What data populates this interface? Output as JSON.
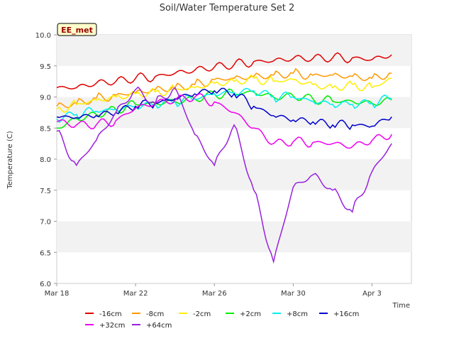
{
  "chart_data": {
    "type": "line",
    "title": "Soil/Water Temperature Set 2",
    "station_label": "EE_met",
    "xlabel": "Time",
    "ylabel": "Temperature (C)",
    "ylim": [
      6.0,
      10.0
    ],
    "yticks": [
      "6.0",
      "6.5",
      "7.0",
      "7.5",
      "8.0",
      "8.5",
      "9.0",
      "9.5",
      "10.0"
    ],
    "xlim": [
      "2024-03-18",
      "2024-04-05"
    ],
    "xticks": [
      {
        "date": "2024-03-18",
        "label": "Mar 18"
      },
      {
        "date": "2024-03-22",
        "label": "Mar 22"
      },
      {
        "date": "2024-03-26",
        "label": "Mar 26"
      },
      {
        "date": "2024-03-30",
        "label": "Mar 30"
      },
      {
        "date": "2024-04-03",
        "label": "Apr 3"
      }
    ],
    "grid": "alternating horizontal bands",
    "legend_position": "bottom",
    "x_dates": [
      "2024-03-18",
      "2024-03-19",
      "2024-03-20",
      "2024-03-21",
      "2024-03-22",
      "2024-03-23",
      "2024-03-24",
      "2024-03-25",
      "2024-03-26",
      "2024-03-27",
      "2024-03-28",
      "2024-03-29",
      "2024-03-30",
      "2024-03-31",
      "2024-04-01",
      "2024-04-02",
      "2024-04-03",
      "2024-04-04"
    ],
    "series": [
      {
        "name": "-16cm",
        "color": "#e00000",
        "values": [
          9.15,
          9.15,
          9.22,
          9.25,
          9.3,
          9.33,
          9.38,
          9.43,
          9.48,
          9.52,
          9.57,
          9.58,
          9.62,
          9.62,
          9.63,
          9.63,
          9.6,
          9.68
        ]
      },
      {
        "name": "-8cm",
        "color": "#ff9900",
        "values": [
          8.85,
          8.9,
          8.98,
          9.03,
          9.07,
          9.12,
          9.15,
          9.2,
          9.28,
          9.3,
          9.33,
          9.35,
          9.38,
          9.35,
          9.35,
          9.33,
          9.3,
          9.38
        ]
      },
      {
        "name": "-2cm",
        "color": "#ffee00",
        "values": [
          8.8,
          8.88,
          8.95,
          9.0,
          9.05,
          9.08,
          9.12,
          9.15,
          9.22,
          9.25,
          9.3,
          9.25,
          9.28,
          9.2,
          9.15,
          9.2,
          9.15,
          9.3
        ]
      },
      {
        "name": "+2cm",
        "color": "#00ee00",
        "values": [
          8.5,
          8.65,
          8.72,
          8.8,
          8.88,
          8.9,
          8.93,
          8.97,
          9.05,
          9.05,
          9.08,
          9.0,
          9.02,
          8.97,
          8.93,
          8.93,
          8.9,
          8.95
        ]
      },
      {
        "name": "+8cm",
        "color": "#00eeee",
        "values": [
          8.65,
          8.72,
          8.77,
          8.8,
          8.85,
          8.88,
          8.92,
          8.97,
          9.05,
          9.07,
          9.1,
          9.0,
          9.0,
          8.93,
          8.88,
          8.88,
          8.9,
          8.98
        ]
      },
      {
        "name": "+16cm",
        "color": "#0000cc",
        "values": [
          8.68,
          8.67,
          8.7,
          8.75,
          8.85,
          8.9,
          8.97,
          9.05,
          9.1,
          9.05,
          8.85,
          8.7,
          8.63,
          8.6,
          8.55,
          8.55,
          8.53,
          8.68
        ]
      },
      {
        "name": "+32cm",
        "color": "#ee00ee",
        "values": [
          8.6,
          8.55,
          8.55,
          8.62,
          8.82,
          8.9,
          8.95,
          9.0,
          8.92,
          8.75,
          8.5,
          8.25,
          8.28,
          8.27,
          8.25,
          8.2,
          8.3,
          8.4
        ]
      },
      {
        "name": "+64cm",
        "color": "#9922dd",
        "values": [
          8.45,
          7.9,
          8.3,
          8.75,
          9.12,
          8.9,
          9.15,
          8.4,
          7.9,
          8.55,
          7.5,
          6.35,
          7.55,
          7.75,
          7.5,
          7.15,
          7.8,
          8.25
        ]
      }
    ]
  }
}
